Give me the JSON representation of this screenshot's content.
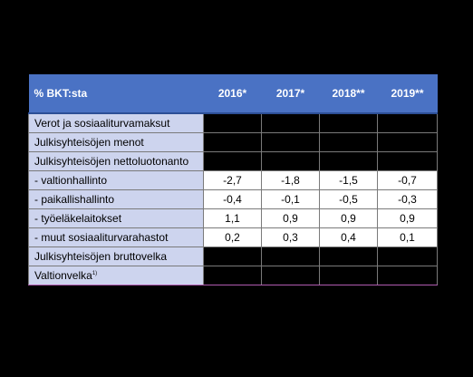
{
  "table": {
    "header": {
      "label": "% BKT:sta",
      "years": [
        "2016*",
        "2017*",
        "2018**",
        "2019**"
      ]
    },
    "rows": [
      {
        "label": "Verot ja sosiaaliturvamaksut",
        "values": [
          "",
          "",
          "",
          ""
        ]
      },
      {
        "label": "Julkisyhteisöjen menot",
        "values": [
          "",
          "",
          "",
          ""
        ]
      },
      {
        "label": "Julkisyhteisöjen nettoluotonanto",
        "values": [
          "",
          "",
          "",
          ""
        ]
      },
      {
        "label": "- valtionhallinto",
        "values": [
          "-2,7",
          "-1,8",
          "-1,5",
          "-0,7"
        ]
      },
      {
        "label": "- paikallishallinto",
        "values": [
          "-0,4",
          "-0,1",
          "-0,5",
          "-0,3"
        ]
      },
      {
        "label": "- työeläkelaitokset",
        "values": [
          "1,1",
          "0,9",
          "0,9",
          "0,9"
        ]
      },
      {
        "label": "- muut sosiaaliturvarahastot",
        "values": [
          "0,2",
          "0,3",
          "0,4",
          "0,1"
        ]
      },
      {
        "label": "Julkisyhteisöjen bruttovelka",
        "values": [
          "",
          "",
          "",
          ""
        ]
      },
      {
        "label": "Valtionvelka",
        "footnote": "1)",
        "values": [
          "",
          "",
          "",
          ""
        ]
      }
    ]
  },
  "colors": {
    "header_bg": "#4a72c4",
    "label_bg": "#cdd4ee",
    "page_bg": "#000000"
  }
}
